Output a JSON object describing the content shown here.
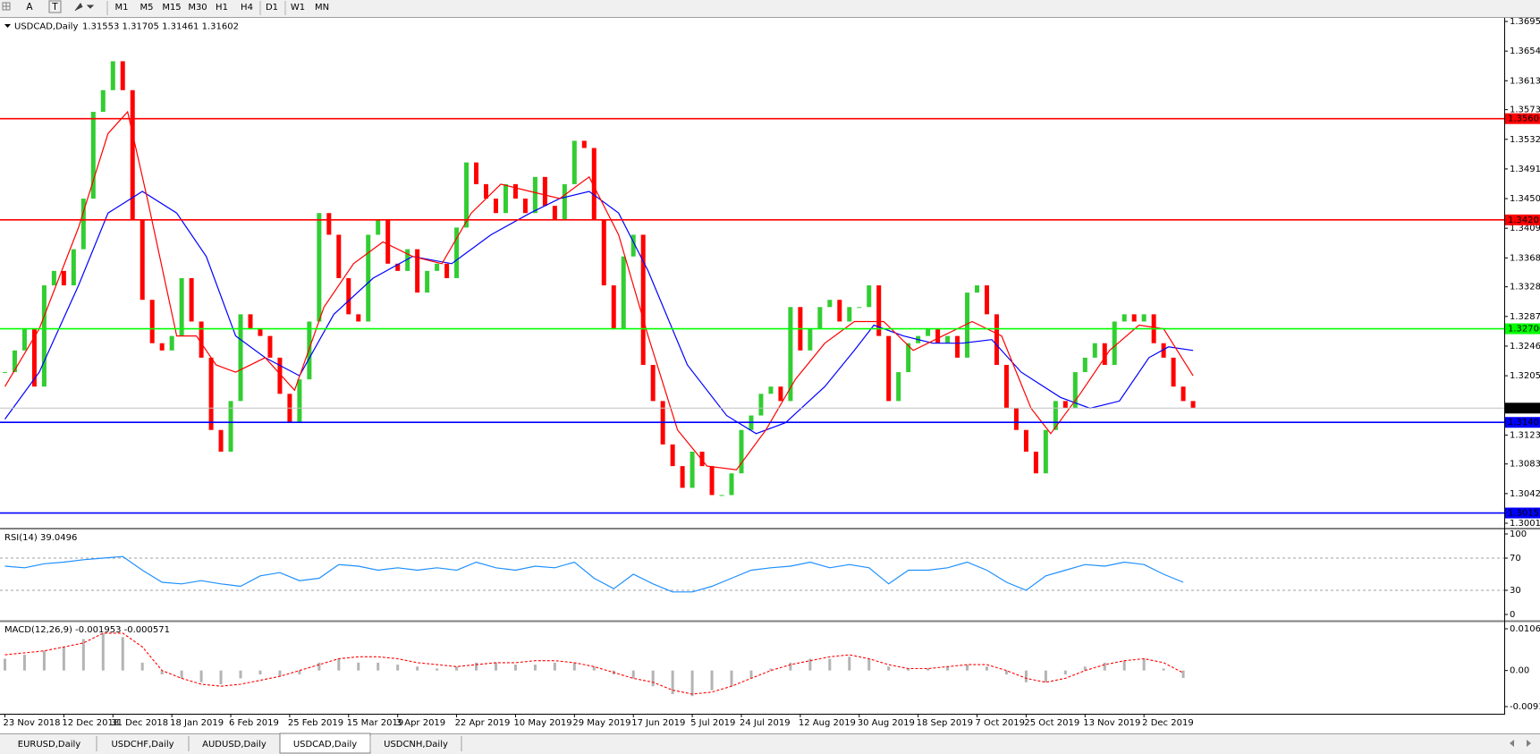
{
  "toolbar": {
    "text_tool": "A",
    "label_tool": "T",
    "timeframes": [
      "M1",
      "M5",
      "M15",
      "M30",
      "H1",
      "H4",
      "D1",
      "W1",
      "MN"
    ]
  },
  "tabs": {
    "items": [
      "EURUSD,Daily",
      "USDCHF,Daily",
      "AUDUSD,Daily",
      "USDCAD,Daily",
      "USDCNH,Daily"
    ],
    "active": 3
  },
  "chart_data": [
    {
      "type": "candlestick",
      "title": "USDCAD,Daily",
      "quote": "1.31553 1.31705 1.31461 1.31602",
      "up_color": "#32cd32",
      "down_color": "#ff0000",
      "categories": [
        "23 Nov 2018",
        null,
        null,
        null,
        null,
        null,
        "12 Dec 2018",
        null,
        null,
        null,
        null,
        "31 Dec 2018",
        null,
        null,
        null,
        null,
        null,
        "18 Jan 2019",
        null,
        null,
        null,
        null,
        null,
        "6 Feb 2019",
        null,
        null,
        null,
        null,
        null,
        "25 Feb 2019",
        null,
        null,
        null,
        null,
        null,
        "15 Mar 2019",
        null,
        null,
        null,
        null,
        "3 Apr 2019",
        null,
        null,
        null,
        null,
        null,
        "22 Apr 2019",
        null,
        null,
        null,
        null,
        null,
        "10 May 2019",
        null,
        null,
        null,
        null,
        null,
        "29 May 2019",
        null,
        null,
        null,
        null,
        null,
        "17 Jun 2019",
        null,
        null,
        null,
        null,
        null,
        "5 Jul 2019",
        null,
        null,
        null,
        null,
        "24 Jul 2019",
        null,
        null,
        null,
        null,
        null,
        "12 Aug 2019",
        null,
        null,
        null,
        null,
        null,
        "30 Aug 2019",
        null,
        null,
        null,
        null,
        null,
        "18 Sep 2019",
        null,
        null,
        null,
        null,
        null,
        "7 Oct 2019",
        null,
        null,
        null,
        null,
        "25 Oct 2019",
        null,
        null,
        null,
        null,
        null,
        "13 Nov 2019",
        null,
        null,
        null,
        null,
        null,
        "2 Dec 2019",
        null,
        null,
        null,
        null,
        null
      ],
      "values": [
        1.321,
        1.324,
        1.327,
        1.319,
        1.333,
        1.335,
        1.333,
        1.338,
        1.345,
        1.357,
        1.36,
        1.364,
        1.36,
        1.342,
        1.331,
        1.325,
        1.324,
        1.326,
        1.334,
        1.328,
        1.323,
        1.313,
        1.31,
        1.317,
        1.329,
        1.327,
        1.326,
        1.323,
        1.318,
        1.314,
        1.32,
        1.328,
        1.343,
        1.34,
        1.334,
        1.329,
        1.328,
        1.34,
        1.342,
        1.336,
        1.335,
        1.338,
        1.332,
        1.335,
        1.336,
        1.334,
        1.341,
        1.35,
        1.347,
        1.345,
        1.343,
        1.347,
        1.345,
        1.343,
        1.348,
        1.344,
        1.342,
        1.347,
        1.353,
        1.352,
        1.342,
        1.333,
        1.327,
        1.337,
        1.34,
        1.322,
        1.317,
        1.311,
        1.308,
        1.305,
        1.31,
        1.308,
        1.304,
        1.304,
        1.307,
        1.313,
        1.315,
        1.318,
        1.319,
        1.317,
        1.33,
        1.324,
        1.327,
        1.33,
        1.331,
        1.328,
        1.33,
        1.33,
        1.333,
        1.326,
        1.317,
        1.321,
        1.325,
        1.326,
        1.327,
        1.325,
        1.326,
        1.323,
        1.332,
        1.333,
        1.329,
        1.322,
        1.316,
        1.313,
        1.31,
        1.307,
        1.313,
        1.317,
        1.316,
        1.321,
        1.323,
        1.325,
        1.322,
        1.328,
        1.329,
        1.328,
        1.329,
        1.325,
        1.323,
        1.319,
        1.317,
        1.316
      ],
      "ylim": [
        1.3001,
        1.3695
      ],
      "yticks": [
        {
          "value": 1.3695,
          "label": "1.36950"
        },
        {
          "value": 1.3654,
          "label": "1.36540"
        },
        {
          "value": 1.3613,
          "label": "1.36130"
        },
        {
          "value": 1.3573,
          "label": "1.35730"
        },
        {
          "value": 1.3532,
          "label": "1.35320"
        },
        {
          "value": 1.3491,
          "label": "1.34910"
        },
        {
          "value": 1.345,
          "label": "1.34500"
        },
        {
          "value": 1.3409,
          "label": "1.34090"
        },
        {
          "value": 1.3368,
          "label": "1.33680"
        },
        {
          "value": 1.3328,
          "label": "1.33280"
        },
        {
          "value": 1.3287,
          "label": "1.32870"
        },
        {
          "value": 1.3246,
          "label": "1.32460"
        },
        {
          "value": 1.3205,
          "label": "1.32050"
        },
        {
          "value": 1.3123,
          "label": "1.31230"
        },
        {
          "value": 1.3083,
          "label": "1.30830"
        },
        {
          "value": 1.3042,
          "label": "1.30420"
        },
        {
          "value": 1.3001,
          "label": "1.30010"
        }
      ],
      "overlays": [
        {
          "color": "#0000ff",
          "x": [
            0,
            3.5,
            7.5,
            10.5,
            14,
            17.5,
            20.5,
            23.5,
            26.5,
            30,
            33.5,
            37.5,
            41.5,
            45.5,
            49.5,
            53.5,
            56.5,
            59.5,
            62.5,
            65.5,
            69.5,
            73.5,
            76.5,
            79.5,
            83.5,
            86.5,
            88.5,
            91.5,
            94.5,
            97.5,
            100.5,
            103.5,
            107.5,
            110.5,
            113.5,
            116.5,
            118.5,
            121
          ],
          "values": [
            1.3145,
            1.321,
            1.333,
            1.343,
            1.346,
            1.343,
            1.337,
            1.326,
            1.323,
            1.3205,
            1.329,
            1.334,
            1.337,
            1.336,
            1.34,
            1.343,
            1.345,
            1.346,
            1.343,
            1.335,
            1.322,
            1.315,
            1.3125,
            1.314,
            1.319,
            1.324,
            1.3275,
            1.326,
            1.325,
            1.325,
            1.3255,
            1.321,
            1.3175,
            1.316,
            1.317,
            1.323,
            1.3245,
            1.324
          ]
        },
        {
          "color": "#ff0000",
          "x": [
            0,
            3.5,
            7.5,
            10.5,
            12.5,
            14.5,
            17.5,
            19.5,
            21.5,
            23.5,
            26.5,
            29.5,
            32.5,
            35.5,
            38.5,
            41.5,
            44.5,
            47.5,
            50.5,
            53.5,
            56.5,
            59.5,
            62.5,
            65.5,
            68.5,
            71.5,
            74.5,
            77.5,
            80.5,
            83.5,
            86.5,
            89.5,
            92.5,
            95.5,
            98.5,
            101.5,
            104.5,
            106.5,
            109.5,
            112.5,
            115.5,
            118,
            121
          ],
          "values": [
            1.319,
            1.327,
            1.341,
            1.354,
            1.357,
            1.345,
            1.326,
            1.326,
            1.322,
            1.321,
            1.323,
            1.3185,
            1.33,
            1.336,
            1.339,
            1.337,
            1.336,
            1.343,
            1.347,
            1.346,
            1.345,
            1.348,
            1.34,
            1.326,
            1.313,
            1.308,
            1.3075,
            1.313,
            1.32,
            1.325,
            1.328,
            1.328,
            1.324,
            1.326,
            1.328,
            1.326,
            1.316,
            1.3125,
            1.318,
            1.324,
            1.3275,
            1.327,
            1.3205
          ]
        }
      ],
      "levels": [
        {
          "value": 1.35606,
          "label": "1.35606",
          "color": "#ff0000"
        },
        {
          "value": 1.34206,
          "label": "1.34206",
          "color": "#ff0000"
        },
        {
          "value": 1.327,
          "label": "1.32700",
          "color": "#00ff00"
        },
        {
          "value": 1.31405,
          "label": "1.31405",
          "color": "#0000ff"
        },
        {
          "value": 1.30152,
          "label": "1.30152",
          "color": "#0000ff"
        }
      ],
      "current": {
        "value": 1.31602,
        "label": "1.31602",
        "color": "#c0c0c0",
        "label_background": "#000000"
      }
    },
    {
      "type": "line",
      "title": "RSI(14) 39.0496",
      "color": "#1e90ff",
      "x": [
        0,
        2,
        4,
        6,
        8,
        10,
        12,
        14,
        16,
        18,
        20,
        22,
        24,
        26,
        28,
        30,
        32,
        34,
        36,
        38,
        40,
        42,
        44,
        46,
        48,
        50,
        52,
        54,
        56,
        58,
        60,
        62,
        64,
        66,
        68,
        70,
        72,
        74,
        76,
        78,
        80,
        82,
        84,
        86,
        88,
        90,
        92,
        94,
        96,
        98,
        100,
        102,
        104,
        106,
        108,
        110,
        112,
        114,
        116,
        118,
        120
      ],
      "values": [
        60,
        58,
        63,
        65,
        68,
        70,
        72,
        55,
        40,
        38,
        42,
        38,
        35,
        48,
        52,
        42,
        45,
        62,
        60,
        55,
        58,
        55,
        58,
        55,
        65,
        58,
        55,
        60,
        58,
        65,
        45,
        32,
        50,
        38,
        28,
        28,
        35,
        45,
        55,
        58,
        60,
        65,
        58,
        62,
        58,
        38,
        55,
        55,
        58,
        65,
        55,
        40,
        30,
        48,
        55,
        62,
        60,
        65,
        62,
        50,
        40
      ],
      "ylim": [
        0,
        100
      ],
      "yticks": [
        0,
        30,
        70,
        100
      ],
      "levels": [
        30,
        70
      ],
      "level_color": "#a0a0a0"
    },
    {
      "type": "macd",
      "title": "MACD(12,26,9) -0.001953 -0.000571",
      "x": [
        0,
        2,
        4,
        6,
        8,
        10,
        12,
        14,
        16,
        18,
        20,
        22,
        24,
        26,
        28,
        30,
        32,
        34,
        36,
        38,
        40,
        42,
        44,
        46,
        48,
        50,
        52,
        54,
        56,
        58,
        60,
        62,
        64,
        66,
        68,
        70,
        72,
        74,
        76,
        78,
        80,
        82,
        84,
        86,
        88,
        90,
        92,
        94,
        96,
        98,
        100,
        102,
        104,
        106,
        108,
        110,
        112,
        114,
        116,
        118,
        120
      ],
      "series": [
        {
          "color": "#b4b4b4",
          "values": [
            0.003,
            0.004,
            0.005,
            0.006,
            0.008,
            0.0095,
            0.0085,
            0.002,
            -0.001,
            -0.002,
            -0.003,
            -0.0035,
            -0.002,
            -0.001,
            -0.0015,
            -0.001,
            0.002,
            0.003,
            0.002,
            0.002,
            0.0015,
            0.001,
            0.0005,
            0.001,
            0.002,
            0.002,
            0.0015,
            0.0015,
            0.002,
            0.002,
            0.001,
            -0.001,
            -0.002,
            -0.004,
            -0.006,
            -0.0065,
            -0.005,
            -0.004,
            -0.002,
            0.0005,
            0.002,
            0.003,
            0.003,
            0.0035,
            0.003,
            0.001,
            0.0005,
            0.0005,
            0.001,
            0.0015,
            0.001,
            -0.001,
            -0.003,
            -0.003,
            -0.001,
            0.001,
            0.002,
            0.0025,
            0.003,
            0.0005,
            -0.0019
          ]
        },
        {
          "color": "#ff0000",
          "values": [
            0.004,
            0.0045,
            0.005,
            0.006,
            0.007,
            0.0095,
            0.0095,
            0.006,
            0.0,
            -0.002,
            -0.0035,
            -0.004,
            -0.0035,
            -0.0025,
            -0.0015,
            0.0,
            0.0015,
            0.003,
            0.0035,
            0.0035,
            0.003,
            0.002,
            0.0015,
            0.001,
            0.0015,
            0.002,
            0.002,
            0.0025,
            0.0025,
            0.002,
            0.001,
            -0.0005,
            -0.002,
            -0.003,
            -0.005,
            -0.006,
            -0.0055,
            -0.004,
            -0.002,
            0.0,
            0.0015,
            0.0025,
            0.0035,
            0.004,
            0.003,
            0.0015,
            0.0005,
            0.0005,
            0.001,
            0.0015,
            0.0015,
            0.0,
            -0.002,
            -0.003,
            -0.002,
            0.0,
            0.0015,
            0.0025,
            0.003,
            0.002,
            -0.0006
          ]
        }
      ],
      "ylim": [
        -0.00918,
        0.010615
      ],
      "yticks": [
        -0.00918,
        {
          "value": 0,
          "label": "0.00"
        },
        0.010615
      ]
    }
  ]
}
